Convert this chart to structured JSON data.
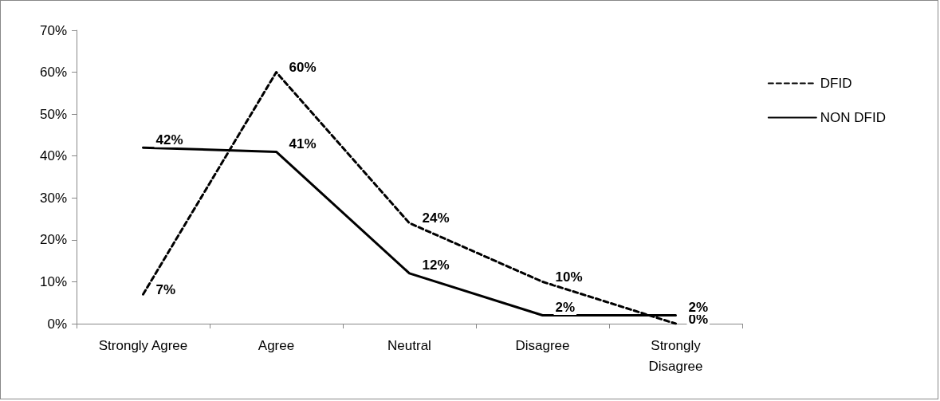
{
  "chart_data": {
    "type": "line",
    "categories": [
      "Strongly Agree",
      "Agree",
      "Neutral",
      "Disagree",
      "Strongly\nDisagree"
    ],
    "series": [
      {
        "name": "DFID",
        "color": "#000000",
        "line_style": "dashed",
        "values": [
          7,
          60,
          24,
          10,
          0
        ],
        "value_labels": [
          "7%",
          "60%",
          "24%",
          "10%",
          "0%"
        ]
      },
      {
        "name": "NON DFID",
        "color": "#000000",
        "line_style": "solid",
        "values": [
          42,
          41,
          12,
          2,
          2
        ],
        "value_labels": [
          "42%",
          "41%",
          "12%",
          "2%",
          "2%"
        ]
      }
    ],
    "ylim": [
      0,
      70
    ],
    "yticks": [
      {
        "value": 0,
        "label": "0%"
      },
      {
        "value": 10,
        "label": "10%"
      },
      {
        "value": 20,
        "label": "20%"
      },
      {
        "value": 30,
        "label": "30%"
      },
      {
        "value": 40,
        "label": "40%"
      },
      {
        "value": 50,
        "label": "50%"
      },
      {
        "value": 60,
        "label": "60%"
      },
      {
        "value": 70,
        "label": "70%"
      }
    ],
    "grid": false,
    "legend": "right",
    "marker": "none"
  }
}
